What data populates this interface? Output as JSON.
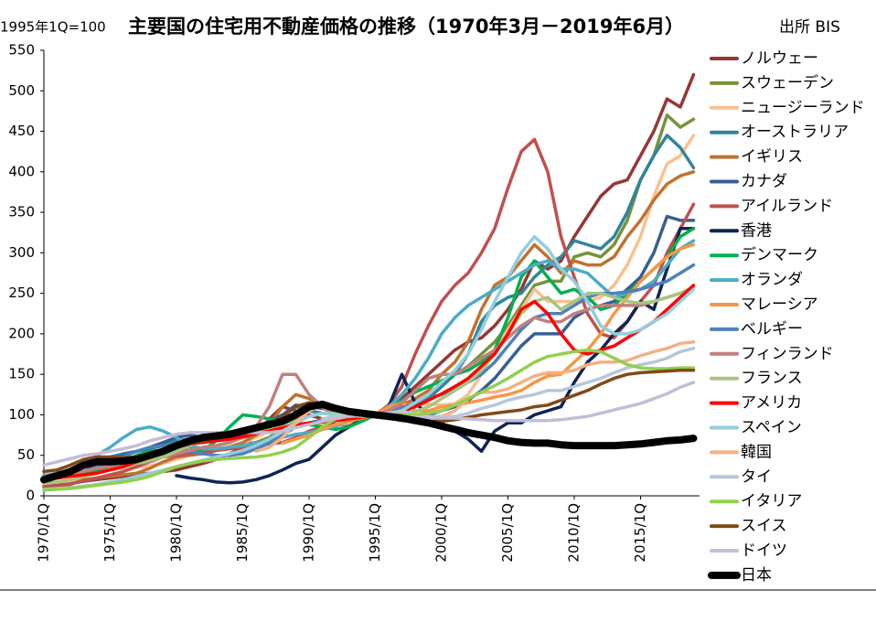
{
  "chart_data": {
    "type": "line",
    "title": "主要国の住宅用不動産価格の推移（1970年3月－2019年6月）",
    "subtitle": "1995年1Q=100",
    "source": "出所 BIS",
    "legend": "right",
    "grid": false,
    "ylim": [
      0,
      550
    ],
    "yticks": [
      0,
      50,
      100,
      150,
      200,
      250,
      300,
      350,
      400,
      450,
      500,
      550
    ],
    "categories": [
      "1970/1Q",
      null,
      null,
      null,
      null,
      "1975/1Q",
      null,
      null,
      null,
      null,
      "1980/1Q",
      null,
      null,
      null,
      null,
      "1985/1Q",
      null,
      null,
      null,
      null,
      "1990/1Q",
      null,
      null,
      null,
      null,
      "1995/1Q",
      null,
      null,
      null,
      null,
      "2000/1Q",
      null,
      null,
      null,
      null,
      "2005/1Q",
      null,
      null,
      null,
      null,
      "2010/1Q",
      null,
      null,
      null,
      null,
      "2015/1Q",
      null,
      null,
      null,
      null
    ],
    "series": [
      {
        "name": "ノルウェー",
        "color": "#953735",
        "values": [
          15,
          16,
          17,
          18,
          20,
          22,
          24,
          26,
          28,
          30,
          32,
          36,
          40,
          45,
          52,
          60,
          75,
          95,
          110,
          105,
          100,
          95,
          88,
          88,
          95,
          100,
          108,
          120,
          135,
          150,
          165,
          180,
          190,
          195,
          210,
          230,
          255,
          290,
          280,
          290,
          320,
          345,
          370,
          385,
          390,
          420,
          450,
          490,
          480,
          520
        ]
      },
      {
        "name": "スウェーデン",
        "color": "#77933c",
        "values": [
          25,
          26,
          28,
          30,
          33,
          37,
          42,
          48,
          52,
          56,
          60,
          60,
          58,
          58,
          60,
          62,
          66,
          72,
          85,
          100,
          110,
          112,
          98,
          92,
          95,
          100,
          100,
          103,
          110,
          120,
          135,
          150,
          160,
          175,
          190,
          210,
          235,
          260,
          265,
          265,
          295,
          300,
          295,
          310,
          340,
          390,
          420,
          470,
          455,
          465
        ]
      },
      {
        "name": "ニュージーランド",
        "color": "#fac090",
        "values": [
          15,
          16,
          18,
          22,
          28,
          32,
          34,
          35,
          37,
          40,
          45,
          50,
          55,
          58,
          62,
          65,
          72,
          80,
          85,
          88,
          88,
          87,
          87,
          90,
          96,
          100,
          108,
          115,
          114,
          113,
          112,
          114,
          125,
          150,
          180,
          205,
          230,
          255,
          240,
          240,
          240,
          240,
          245,
          260,
          285,
          320,
          370,
          410,
          420,
          445
        ]
      },
      {
        "name": "オーストラリア",
        "color": "#31859c",
        "values": [
          25,
          27,
          30,
          35,
          42,
          48,
          52,
          55,
          58,
          62,
          68,
          70,
          68,
          68,
          70,
          72,
          76,
          82,
          100,
          110,
          105,
          102,
          100,
          100,
          100,
          100,
          100,
          103,
          110,
          120,
          135,
          150,
          175,
          215,
          235,
          245,
          250,
          270,
          285,
          295,
          315,
          310,
          305,
          320,
          350,
          390,
          420,
          445,
          430,
          405
        ]
      },
      {
        "name": "イギリス",
        "color": "#c0722f",
        "values": [
          10,
          11,
          14,
          20,
          22,
          24,
          26,
          28,
          34,
          42,
          48,
          50,
          52,
          56,
          60,
          66,
          75,
          88,
          110,
          125,
          120,
          112,
          105,
          100,
          100,
          100,
          103,
          112,
          120,
          130,
          150,
          165,
          190,
          230,
          260,
          270,
          290,
          310,
          295,
          275,
          290,
          285,
          285,
          295,
          320,
          340,
          365,
          385,
          395,
          400
        ]
      },
      {
        "name": "カナダ",
        "color": "#376092",
        "values": [
          20,
          22,
          25,
          30,
          38,
          45,
          50,
          55,
          60,
          66,
          72,
          75,
          72,
          72,
          74,
          78,
          85,
          92,
          100,
          112,
          110,
          108,
          105,
          103,
          102,
          100,
          98,
          98,
          98,
          100,
          105,
          110,
          118,
          130,
          145,
          165,
          185,
          200,
          200,
          200,
          220,
          230,
          235,
          240,
          255,
          270,
          300,
          345,
          340,
          340
        ]
      },
      {
        "name": "アイルランド",
        "color": "#c0504d",
        "values": [
          12,
          13,
          15,
          18,
          22,
          26,
          30,
          36,
          42,
          48,
          50,
          52,
          54,
          56,
          58,
          60,
          62,
          64,
          66,
          72,
          80,
          85,
          88,
          92,
          96,
          100,
          112,
          135,
          175,
          210,
          240,
          260,
          275,
          300,
          330,
          380,
          425,
          440,
          400,
          320,
          270,
          225,
          200,
          195,
          215,
          240,
          260,
          300,
          330,
          360
        ]
      },
      {
        "name": "香港",
        "color": "#0f2453",
        "values": [
          null,
          null,
          null,
          null,
          null,
          null,
          null,
          null,
          null,
          null,
          25,
          22,
          20,
          17,
          16,
          17,
          20,
          25,
          32,
          40,
          45,
          60,
          75,
          85,
          95,
          100,
          110,
          150,
          115,
          100,
          90,
          80,
          70,
          55,
          80,
          90,
          90,
          100,
          105,
          110,
          140,
          165,
          180,
          200,
          215,
          240,
          230,
          280,
          330,
          330
        ]
      },
      {
        "name": "デンマーク",
        "color": "#00b050",
        "values": [
          20,
          22,
          25,
          28,
          32,
          36,
          42,
          50,
          55,
          56,
          55,
          54,
          56,
          68,
          85,
          100,
          98,
          95,
          92,
          90,
          88,
          85,
          82,
          85,
          92,
          100,
          110,
          118,
          128,
          135,
          142,
          150,
          155,
          165,
          180,
          220,
          270,
          290,
          270,
          250,
          255,
          245,
          230,
          235,
          250,
          265,
          280,
          295,
          320,
          330
        ]
      },
      {
        "name": "オランダ",
        "color": "#4bacc6",
        "values": [
          25,
          28,
          32,
          40,
          50,
          60,
          72,
          82,
          85,
          80,
          72,
          62,
          58,
          58,
          60,
          62,
          65,
          68,
          72,
          76,
          78,
          82,
          86,
          92,
          96,
          100,
          110,
          125,
          145,
          170,
          200,
          220,
          235,
          245,
          255,
          265,
          275,
          285,
          290,
          280,
          280,
          275,
          260,
          245,
          250,
          255,
          265,
          285,
          305,
          315
        ]
      },
      {
        "name": "マレーシア",
        "color": "#f79646",
        "values": [
          null,
          null,
          null,
          null,
          null,
          null,
          null,
          null,
          null,
          null,
          null,
          null,
          null,
          null,
          null,
          null,
          null,
          null,
          65,
          70,
          75,
          82,
          88,
          92,
          96,
          100,
          110,
          115,
          105,
          105,
          110,
          112,
          115,
          118,
          122,
          125,
          130,
          140,
          148,
          150,
          165,
          180,
          200,
          225,
          245,
          265,
          280,
          295,
          305,
          310
        ]
      },
      {
        "name": "ベルギー",
        "color": "#4f81bd",
        "values": [
          20,
          22,
          25,
          30,
          36,
          42,
          48,
          55,
          60,
          62,
          60,
          55,
          52,
          50,
          50,
          52,
          58,
          65,
          75,
          85,
          90,
          94,
          96,
          98,
          99,
          100,
          104,
          108,
          115,
          120,
          125,
          132,
          140,
          150,
          165,
          185,
          205,
          220,
          225,
          225,
          235,
          245,
          250,
          250,
          252,
          255,
          260,
          265,
          275,
          285
        ]
      },
      {
        "name": "フィンランド",
        "color": "#c0807e",
        "values": [
          20,
          22,
          25,
          30,
          34,
          36,
          38,
          40,
          42,
          48,
          52,
          56,
          60,
          62,
          66,
          72,
          85,
          110,
          150,
          150,
          125,
          110,
          98,
          95,
          98,
          100,
          105,
          115,
          130,
          145,
          150,
          150,
          160,
          170,
          180,
          195,
          210,
          220,
          215,
          215,
          225,
          230,
          235,
          235,
          235,
          235,
          240,
          245,
          250,
          255
        ]
      },
      {
        "name": "フランス",
        "color": "#a9c47f",
        "values": [
          15,
          17,
          20,
          24,
          28,
          32,
          36,
          40,
          44,
          48,
          55,
          62,
          68,
          72,
          74,
          76,
          78,
          82,
          88,
          94,
          98,
          102,
          102,
          101,
          100,
          100,
          100,
          100,
          104,
          110,
          120,
          130,
          140,
          155,
          175,
          200,
          225,
          240,
          245,
          230,
          240,
          250,
          250,
          245,
          240,
          238,
          240,
          245,
          250,
          258
        ]
      },
      {
        "name": "アメリカ",
        "color": "#ff0000",
        "values": [
          20,
          22,
          24,
          26,
          28,
          32,
          36,
          42,
          48,
          54,
          60,
          64,
          66,
          68,
          70,
          73,
          77,
          80,
          84,
          88,
          90,
          91,
          93,
          95,
          97,
          100,
          102,
          105,
          110,
          118,
          126,
          135,
          145,
          160,
          175,
          200,
          230,
          240,
          225,
          200,
          180,
          175,
          180,
          185,
          195,
          205,
          215,
          230,
          245,
          260
        ]
      },
      {
        "name": "スペイン",
        "color": "#93cddd",
        "values": [
          8,
          9,
          10,
          12,
          14,
          17,
          20,
          24,
          28,
          32,
          36,
          40,
          44,
          48,
          52,
          56,
          62,
          70,
          80,
          90,
          98,
          102,
          100,
          98,
          99,
          100,
          102,
          105,
          115,
          125,
          140,
          155,
          175,
          205,
          240,
          270,
          300,
          320,
          305,
          280,
          265,
          240,
          210,
          200,
          200,
          205,
          215,
          225,
          240,
          255
        ]
      },
      {
        "name": "韓国",
        "color": "#f4b183",
        "values": [
          null,
          null,
          null,
          null,
          null,
          null,
          null,
          null,
          null,
          null,
          null,
          null,
          null,
          null,
          null,
          null,
          55,
          60,
          72,
          90,
          105,
          112,
          106,
          100,
          98,
          100,
          102,
          104,
          95,
          96,
          98,
          105,
          120,
          128,
          128,
          132,
          140,
          148,
          152,
          152,
          155,
          162,
          165,
          165,
          167,
          173,
          178,
          182,
          188,
          190
        ]
      },
      {
        "name": "タイ",
        "color": "#b9c6d9",
        "values": [
          null,
          null,
          null,
          null,
          null,
          null,
          null,
          null,
          null,
          null,
          null,
          null,
          null,
          null,
          null,
          null,
          null,
          null,
          null,
          null,
          null,
          95,
          98,
          99,
          100,
          100,
          102,
          105,
          100,
          98,
          98,
          98,
          102,
          108,
          112,
          118,
          122,
          125,
          130,
          130,
          135,
          140,
          145,
          152,
          158,
          162,
          165,
          170,
          178,
          182
        ]
      },
      {
        "name": "イタリア",
        "color": "#92d050",
        "values": [
          7,
          8,
          9,
          11,
          13,
          15,
          17,
          20,
          24,
          30,
          36,
          40,
          43,
          45,
          46,
          47,
          48,
          50,
          54,
          60,
          72,
          85,
          95,
          98,
          100,
          100,
          100,
          100,
          100,
          102,
          105,
          112,
          120,
          128,
          136,
          145,
          155,
          165,
          172,
          175,
          178,
          180,
          178,
          170,
          162,
          158,
          157,
          157,
          158,
          158
        ]
      },
      {
        "name": "スイス",
        "color": "#7f4a16",
        "values": [
          30,
          32,
          38,
          45,
          48,
          48,
          47,
          48,
          52,
          56,
          60,
          64,
          68,
          72,
          75,
          78,
          82,
          88,
          98,
          110,
          115,
          112,
          106,
          104,
          102,
          100,
          96,
          93,
          92,
          92,
          92,
          94,
          97,
          100,
          102,
          104,
          106,
          110,
          112,
          118,
          124,
          130,
          138,
          145,
          150,
          152,
          153,
          154,
          155,
          155
        ]
      },
      {
        "name": "ドイツ",
        "color": "#c4bdd7",
        "values": [
          38,
          42,
          46,
          50,
          52,
          55,
          58,
          62,
          68,
          72,
          76,
          78,
          78,
          78,
          78,
          78,
          78,
          78,
          80,
          84,
          88,
          92,
          96,
          99,
          100,
          100,
          99,
          98,
          97,
          96,
          96,
          96,
          95,
          94,
          93,
          93,
          93,
          93,
          93,
          94,
          96,
          98,
          102,
          106,
          110,
          114,
          120,
          126,
          134,
          140
        ]
      },
      {
        "name": "日本",
        "color": "#000000",
        "values": [
          20,
          25,
          30,
          38,
          42,
          42,
          43,
          45,
          50,
          55,
          62,
          68,
          72,
          74,
          76,
          80,
          84,
          88,
          92,
          100,
          110,
          113,
          108,
          104,
          102,
          100,
          98,
          96,
          93,
          90,
          86,
          82,
          78,
          75,
          72,
          68,
          66,
          65,
          65,
          63,
          62,
          62,
          62,
          62,
          63,
          64,
          66,
          68,
          69,
          71
        ]
      }
    ]
  }
}
